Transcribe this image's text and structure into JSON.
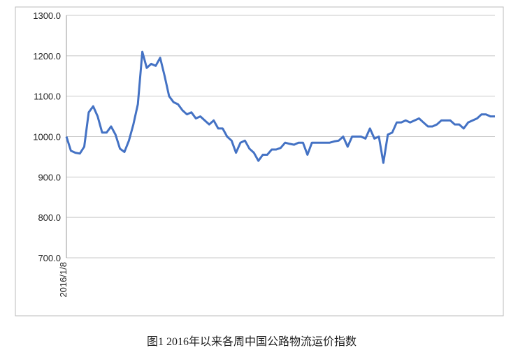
{
  "chart_data": {
    "type": "line",
    "caption": "图1 2016年以来各周中国公路物流运价指数",
    "categories": [
      "2016/1/8",
      null,
      null,
      null,
      null,
      null,
      null,
      null,
      null,
      null,
      null,
      null,
      null,
      null,
      null,
      null,
      null,
      null,
      null,
      null,
      null,
      null,
      null,
      null,
      null,
      null,
      null,
      null,
      null,
      null,
      null,
      null,
      null,
      null,
      null,
      null,
      null,
      null,
      null,
      null,
      null,
      null,
      null,
      null,
      null,
      null,
      null,
      null,
      null,
      null,
      null,
      null,
      null,
      null,
      null,
      null,
      null,
      null,
      null,
      null,
      null,
      null,
      null,
      null,
      null,
      null,
      null,
      null,
      null,
      null,
      null,
      null,
      null,
      null,
      null,
      null,
      null,
      null,
      null,
      null,
      null,
      null,
      null,
      null,
      null,
      null,
      null,
      null,
      null,
      null,
      null,
      null,
      null,
      null,
      null,
      null,
      null
    ],
    "values": [
      1000,
      965,
      960,
      958,
      975,
      1060,
      1075,
      1050,
      1010,
      1010,
      1025,
      1005,
      970,
      962,
      990,
      1030,
      1080,
      1210,
      1170,
      1180,
      1175,
      1195,
      1150,
      1100,
      1085,
      1080,
      1065,
      1055,
      1060,
      1045,
      1050,
      1040,
      1030,
      1040,
      1020,
      1020,
      1000,
      990,
      960,
      985,
      990,
      970,
      960,
      940,
      955,
      955,
      968,
      968,
      972,
      985,
      982,
      980,
      985,
      985,
      955,
      985,
      985,
      985,
      985,
      985,
      988,
      990,
      1000,
      975,
      1000,
      1000,
      1000,
      995,
      1020,
      995,
      1000,
      935,
      1005,
      1010,
      1035,
      1035,
      1040,
      1035,
      1040,
      1045,
      1035,
      1025,
      1025,
      1030,
      1040,
      1040,
      1040,
      1030,
      1030,
      1020,
      1035,
      1040,
      1045,
      1055,
      1055,
      1050,
      1050
    ],
    "color": "#4472c4",
    "ylim": [
      700,
      1300
    ],
    "yticks": [
      {
        "value": 700,
        "label": "700.0"
      },
      {
        "value": 800,
        "label": "800.0"
      },
      {
        "value": 900,
        "label": "900.0"
      },
      {
        "value": 1000,
        "label": "1000.0"
      },
      {
        "value": 1100,
        "label": "1100.0"
      },
      {
        "value": 1200,
        "label": "1200.0"
      },
      {
        "value": 1300,
        "label": "1300.0"
      }
    ],
    "grid": true
  }
}
